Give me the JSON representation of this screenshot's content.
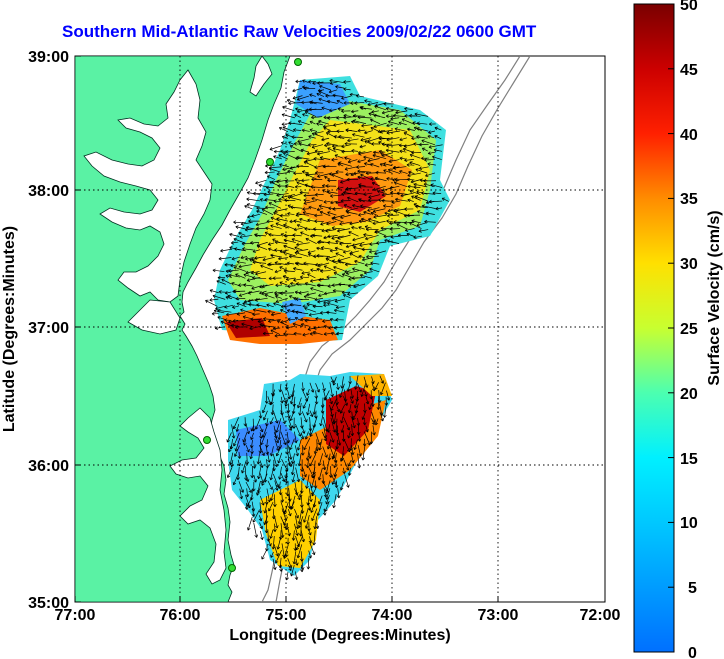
{
  "title": "Southern Mid-Atlantic Raw Velocities 2009/02/22 0600 GMT",
  "axes": {
    "xlabel": "Longitude (Degrees:Minutes)",
    "ylabel": "Latitude (Degrees:Minutes)",
    "xticks": [
      "77:00",
      "76:00",
      "75:00",
      "74:00",
      "73:00",
      "72:00"
    ],
    "yticks": [
      "39:00",
      "38:00",
      "37:00",
      "36:00",
      "35:00"
    ]
  },
  "colorbar": {
    "label": "Surface Velocity (cm/s)",
    "ticks": [
      "50",
      "45",
      "40",
      "35",
      "30",
      "25",
      "20",
      "15",
      "10",
      "5",
      "0"
    ],
    "min": 0,
    "max": 50
  },
  "colors": {
    "land": "#5af2a4",
    "title": "#0000ff",
    "station": "#33dd33"
  }
}
